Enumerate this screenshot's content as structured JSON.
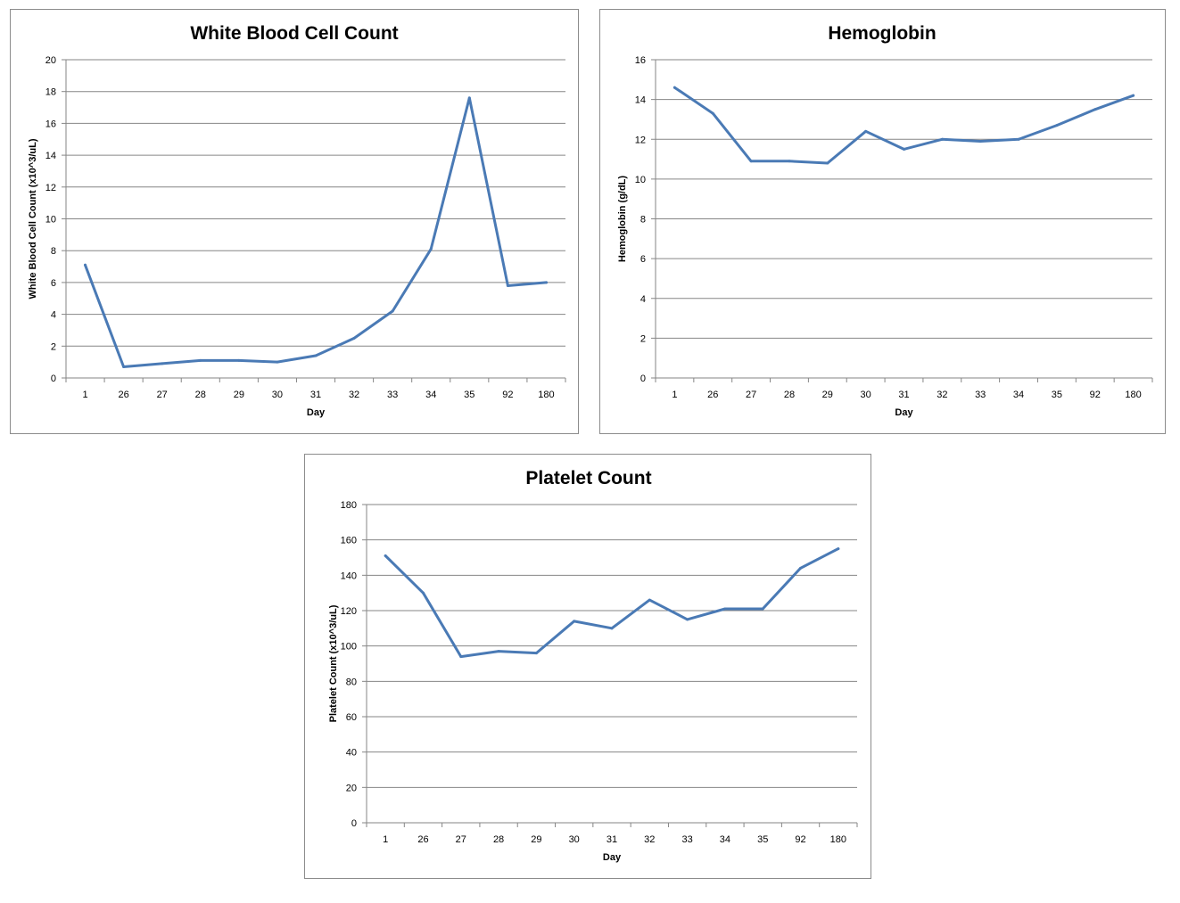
{
  "chart_data": [
    {
      "type": "line",
      "title": "White Blood Cell Count",
      "xlabel": "Day",
      "ylabel": "White Blood Cell Count (x10^3/uL)",
      "categories": [
        "1",
        "26",
        "27",
        "28",
        "29",
        "30",
        "31",
        "32",
        "33",
        "34",
        "35",
        "92",
        "180"
      ],
      "yticks": [
        0,
        2,
        4,
        6,
        8,
        10,
        12,
        14,
        16,
        18,
        20
      ],
      "ylim": [
        0,
        20
      ],
      "grid": true,
      "legend": "none",
      "series": [
        {
          "values": [
            7.1,
            0.7,
            0.9,
            1.1,
            1.1,
            1.0,
            1.4,
            2.5,
            4.2,
            8.1,
            17.6,
            5.8,
            6.0
          ]
        }
      ],
      "color": "#4a7ab5"
    },
    {
      "type": "line",
      "title": "Hemoglobin",
      "xlabel": "Day",
      "ylabel": "Hemoglobin (g/dL)",
      "categories": [
        "1",
        "26",
        "27",
        "28",
        "29",
        "30",
        "31",
        "32",
        "33",
        "34",
        "35",
        "92",
        "180"
      ],
      "yticks": [
        0,
        2,
        4,
        6,
        8,
        10,
        12,
        14,
        16
      ],
      "ylim": [
        0,
        16
      ],
      "grid": true,
      "legend": "none",
      "series": [
        {
          "values": [
            14.6,
            13.3,
            10.9,
            10.9,
            10.8,
            12.4,
            11.5,
            12.0,
            11.9,
            12.0,
            12.7,
            13.5,
            14.2
          ]
        }
      ],
      "color": "#4a7ab5"
    },
    {
      "type": "line",
      "title": "Platelet Count",
      "xlabel": "Day",
      "ylabel": "Platelet Count (x10^3/uL)",
      "categories": [
        "1",
        "26",
        "27",
        "28",
        "29",
        "30",
        "31",
        "32",
        "33",
        "34",
        "35",
        "92",
        "180"
      ],
      "yticks": [
        0,
        20,
        40,
        60,
        80,
        100,
        120,
        140,
        160,
        180
      ],
      "ylim": [
        0,
        180
      ],
      "grid": true,
      "legend": "none",
      "series": [
        {
          "values": [
            151,
            130,
            94,
            97,
            96,
            114,
            110,
            126,
            115,
            121,
            121,
            144,
            155
          ]
        }
      ],
      "color": "#4a7ab5"
    }
  ]
}
